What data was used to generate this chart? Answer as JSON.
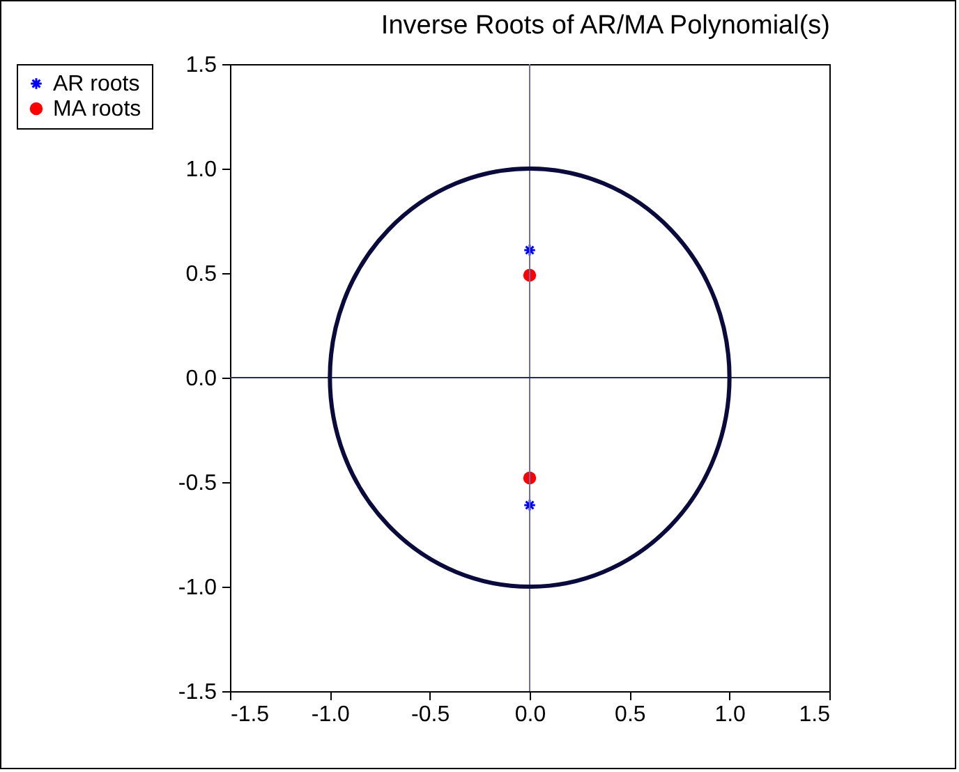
{
  "chart_data": {
    "type": "scatter",
    "title": "Inverse Roots of AR/MA Polynomial(s)",
    "x": [
      0,
      0
    ],
    "xlim": [
      -1.5,
      1.5
    ],
    "ylim": [
      -1.5,
      1.5
    ],
    "xticks": [
      {
        "value": -1.5,
        "label": "-1.5"
      },
      {
        "value": -1,
        "label": "-1.0"
      },
      {
        "value": -0.5,
        "label": "-0.5"
      },
      {
        "value": 0,
        "label": "0.0"
      },
      {
        "value": 0.5,
        "label": "0.5"
      },
      {
        "value": 1,
        "label": "1.0"
      },
      {
        "value": 1.5,
        "label": "1.5"
      }
    ],
    "yticks": [
      {
        "value": -1.5,
        "label": "-1.5"
      },
      {
        "value": -1,
        "label": "-1.0"
      },
      {
        "value": -0.5,
        "label": "-0.5"
      },
      {
        "value": 0,
        "label": "0.0"
      },
      {
        "value": 0.5,
        "label": "0.5"
      },
      {
        "value": 1,
        "label": "1.0"
      },
      {
        "value": 1.5,
        "label": "1.5"
      }
    ],
    "grid": false,
    "legend": "left",
    "ref_lines": [
      {
        "axis": "x",
        "value": 0,
        "color": "#6c6ca8"
      },
      {
        "axis": "y",
        "value": 0,
        "color": "#2a2a5a"
      }
    ],
    "series": [
      {
        "name": "AR roots",
        "marker": "cross",
        "color": "#0000ff",
        "values": [
          0.61,
          -0.61
        ]
      },
      {
        "name": "MA roots",
        "marker": "circle",
        "color": "#ff0000",
        "values": [
          0.49,
          -0.48
        ]
      }
    ]
  }
}
